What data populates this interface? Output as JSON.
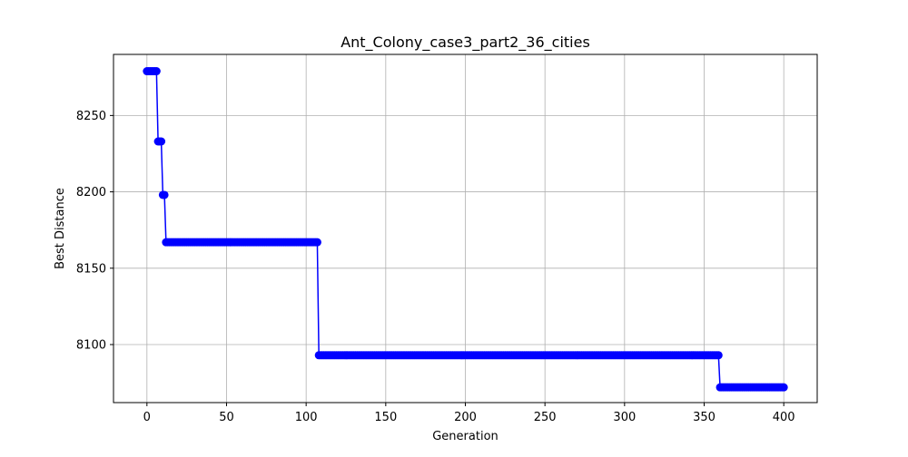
{
  "chart_data": {
    "type": "line",
    "title": "Ant_Colony_case3_part2_36_cities",
    "xlabel": "Generation",
    "ylabel": "Best Distance",
    "xlim": [
      -21,
      421
    ],
    "ylim": [
      8062,
      8290
    ],
    "xticks": [
      0,
      50,
      100,
      150,
      200,
      250,
      300,
      350,
      400
    ],
    "yticks": [
      8100,
      8150,
      8200,
      8250
    ],
    "grid": true,
    "color": "#0000ff",
    "marker": "circle",
    "x_start": 0,
    "x_end": 400,
    "segments": [
      {
        "from": 0,
        "to": 6,
        "value": 8279
      },
      {
        "from": 7,
        "to": 9,
        "value": 8233
      },
      {
        "from": 10,
        "to": 11,
        "value": 8198
      },
      {
        "from": 12,
        "to": 107,
        "value": 8167
      },
      {
        "from": 108,
        "to": 359,
        "value": 8093
      },
      {
        "from": 360,
        "to": 400,
        "value": 8072
      }
    ]
  }
}
